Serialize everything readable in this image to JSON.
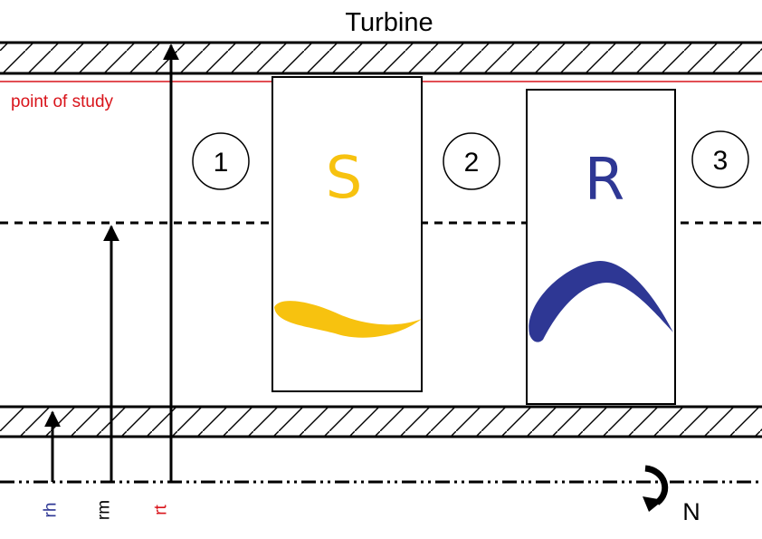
{
  "title": "Turbine",
  "study_label": "point of study",
  "stations": [
    "1",
    "2",
    "3"
  ],
  "stator": {
    "letter": "S",
    "color": "#f7c20f"
  },
  "rotor": {
    "letter": "R",
    "color": "#2e3794"
  },
  "radii": [
    {
      "label": "rh",
      "color": "#2e3794"
    },
    {
      "label": "rm",
      "color": "#000000"
    },
    {
      "label": "rt",
      "color": "#d9141b"
    }
  ],
  "rotation_label": "N",
  "study_line_color": "#d9141b",
  "icons": {
    "rotation": "curved-arrow-icon"
  }
}
